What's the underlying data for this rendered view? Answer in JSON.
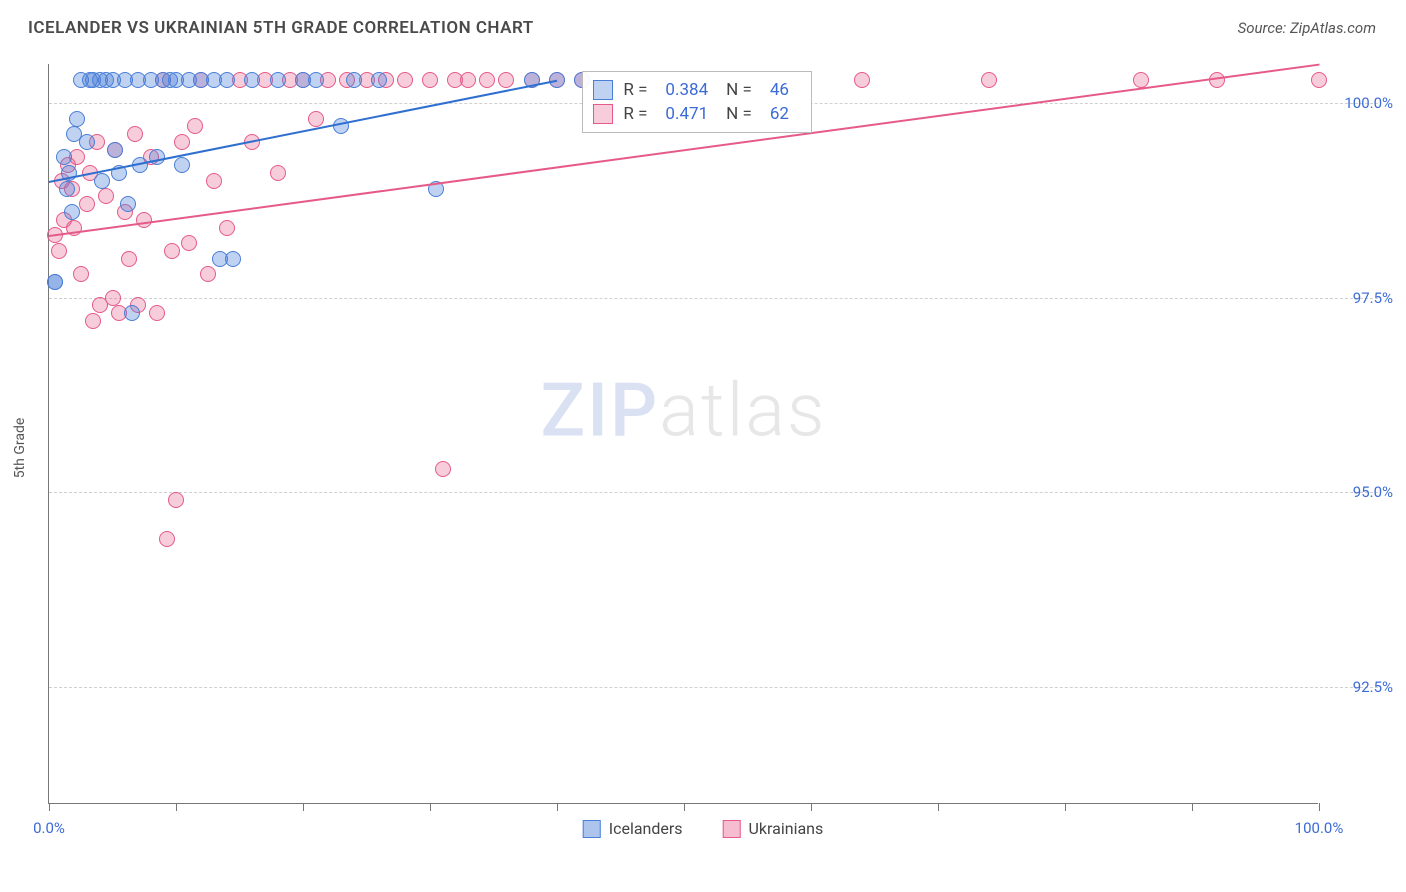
{
  "header": {
    "title": "ICELANDER VS UKRAINIAN 5TH GRADE CORRELATION CHART",
    "source_label": "Source: ZipAtlas.com"
  },
  "chart": {
    "type": "scatter",
    "y_axis_label": "5th Grade",
    "background_color": "#ffffff",
    "grid_color": "#d0d0d0",
    "axis_color": "#777777",
    "xlim": [
      0,
      100
    ],
    "ylim": [
      91.0,
      100.5
    ],
    "x_ticks": [
      0,
      10,
      20,
      30,
      40,
      50,
      60,
      70,
      80,
      90,
      100
    ],
    "x_tick_labels": {
      "0": "0.0%",
      "100": "100.0%"
    },
    "y_ticks": [
      92.5,
      95.0,
      97.5,
      100.0
    ],
    "y_tick_labels": {
      "92.5": "92.5%",
      "95.0": "95.0%",
      "97.5": "97.5%",
      "100.0": "100.0%"
    },
    "tick_label_color": "#3b6bd6",
    "tick_label_fontsize": 15,
    "marker_radius": 8,
    "marker_fill_opacity": 0.35,
    "series": {
      "icelanders": {
        "label": "Icelanders",
        "color": "#4a7fd8",
        "fill": "rgba(74,127,216,0.35)",
        "stroke": "#4a7fd8",
        "R": "0.384",
        "N": "46",
        "trend": {
          "x1": 0,
          "y1": 99.0,
          "x2": 40,
          "y2": 100.3,
          "color": "#2f6fd0",
          "width": 2
        },
        "points": [
          [
            0.5,
            97.7
          ],
          [
            0.5,
            97.7
          ],
          [
            1.2,
            99.3
          ],
          [
            1.4,
            98.9
          ],
          [
            1.6,
            99.1
          ],
          [
            1.8,
            98.6
          ],
          [
            2.0,
            99.6
          ],
          [
            2.2,
            99.8
          ],
          [
            2.5,
            100.3
          ],
          [
            3.0,
            99.5
          ],
          [
            3.2,
            100.3
          ],
          [
            3.5,
            100.3
          ],
          [
            4.0,
            100.3
          ],
          [
            4.2,
            99.0
          ],
          [
            4.5,
            100.3
          ],
          [
            5.0,
            100.3
          ],
          [
            5.2,
            99.4
          ],
          [
            5.5,
            99.1
          ],
          [
            6.0,
            100.3
          ],
          [
            6.2,
            98.7
          ],
          [
            6.5,
            97.3
          ],
          [
            7.0,
            100.3
          ],
          [
            7.2,
            99.2
          ],
          [
            8.0,
            100.3
          ],
          [
            8.5,
            99.3
          ],
          [
            9.0,
            100.3
          ],
          [
            9.5,
            100.3
          ],
          [
            10.0,
            100.3
          ],
          [
            10.5,
            99.2
          ],
          [
            11.0,
            100.3
          ],
          [
            12.0,
            100.3
          ],
          [
            13.0,
            100.3
          ],
          [
            13.5,
            98.0
          ],
          [
            14.0,
            100.3
          ],
          [
            14.5,
            98.0
          ],
          [
            16.0,
            100.3
          ],
          [
            18.0,
            100.3
          ],
          [
            20.0,
            100.3
          ],
          [
            21.0,
            100.3
          ],
          [
            23.0,
            99.7
          ],
          [
            24.0,
            100.3
          ],
          [
            26.0,
            100.3
          ],
          [
            30.5,
            98.9
          ],
          [
            38.0,
            100.3
          ],
          [
            40.0,
            100.3
          ],
          [
            42.0,
            100.3
          ]
        ]
      },
      "ukrainians": {
        "label": "Ukrainians",
        "color": "#e65a88",
        "fill": "rgba(230,90,136,0.30)",
        "stroke": "#e65a88",
        "R": "0.471",
        "N": "62",
        "trend": {
          "x1": 0,
          "y1": 98.3,
          "x2": 100,
          "y2": 100.5,
          "color": "#e65a88",
          "width": 2
        },
        "points": [
          [
            0.5,
            98.3
          ],
          [
            0.8,
            98.1
          ],
          [
            1.0,
            99.0
          ],
          [
            1.2,
            98.5
          ],
          [
            1.5,
            99.2
          ],
          [
            1.8,
            98.9
          ],
          [
            2.0,
            98.4
          ],
          [
            2.2,
            99.3
          ],
          [
            2.5,
            97.8
          ],
          [
            3.0,
            98.7
          ],
          [
            3.2,
            99.1
          ],
          [
            3.5,
            97.2
          ],
          [
            3.8,
            99.5
          ],
          [
            4.0,
            97.4
          ],
          [
            4.5,
            98.8
          ],
          [
            5.0,
            97.5
          ],
          [
            5.2,
            99.4
          ],
          [
            5.5,
            97.3
          ],
          [
            6.0,
            98.6
          ],
          [
            6.3,
            98.0
          ],
          [
            6.8,
            99.6
          ],
          [
            7.0,
            97.4
          ],
          [
            7.5,
            98.5
          ],
          [
            8.0,
            99.3
          ],
          [
            8.5,
            97.3
          ],
          [
            9.0,
            100.3
          ],
          [
            9.3,
            94.4
          ],
          [
            9.7,
            98.1
          ],
          [
            10.0,
            94.9
          ],
          [
            10.5,
            99.5
          ],
          [
            11.0,
            98.2
          ],
          [
            11.5,
            99.7
          ],
          [
            12.0,
            100.3
          ],
          [
            12.5,
            97.8
          ],
          [
            13.0,
            99.0
          ],
          [
            14.0,
            98.4
          ],
          [
            15.0,
            100.3
          ],
          [
            16.0,
            99.5
          ],
          [
            17.0,
            100.3
          ],
          [
            18.0,
            99.1
          ],
          [
            19.0,
            100.3
          ],
          [
            20.0,
            100.3
          ],
          [
            21.0,
            99.8
          ],
          [
            22.0,
            100.3
          ],
          [
            23.5,
            100.3
          ],
          [
            25.0,
            100.3
          ],
          [
            26.5,
            100.3
          ],
          [
            28.0,
            100.3
          ],
          [
            30.0,
            100.3
          ],
          [
            31.0,
            95.3
          ],
          [
            32.0,
            100.3
          ],
          [
            33.0,
            100.3
          ],
          [
            34.5,
            100.3
          ],
          [
            36.0,
            100.3
          ],
          [
            38.0,
            100.3
          ],
          [
            40.0,
            100.3
          ],
          [
            42.0,
            100.3
          ],
          [
            64.0,
            100.3
          ],
          [
            74.0,
            100.3
          ],
          [
            86.0,
            100.3
          ],
          [
            92.0,
            100.3
          ],
          [
            100.0,
            100.3
          ]
        ]
      }
    },
    "legend_box": {
      "left_pct": 42,
      "top_pct": 1
    },
    "watermark": {
      "zip": "ZIP",
      "atlas": "atlas"
    }
  },
  "bottom_legend": {
    "items": [
      {
        "label": "Icelanders",
        "fill": "rgba(74,127,216,0.45)",
        "stroke": "#4a7fd8"
      },
      {
        "label": "Ukrainians",
        "fill": "rgba(230,90,136,0.40)",
        "stroke": "#e65a88"
      }
    ]
  }
}
